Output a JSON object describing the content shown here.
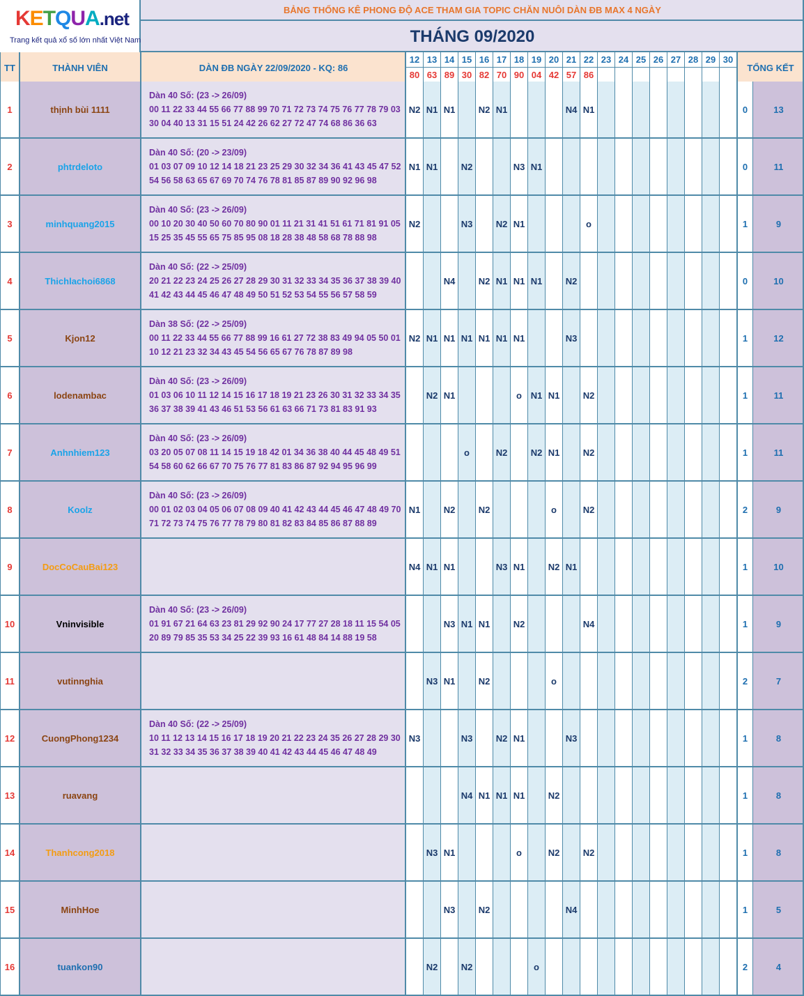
{
  "logo": {
    "brand": "KETQUA",
    "suffix": ".net",
    "tagline": "Trang kết quả xổ số lớn nhất Việt Nam"
  },
  "title": "BẢNG THỐNG KÊ PHONG ĐỘ ACE THAM GIA TOPIC CHĂN NUÔI DÀN ĐB MAX 4 NGÀY",
  "month": "THÁNG 09/2020",
  "headers": {
    "tt": "TT",
    "member": "THÀNH VIÊN",
    "dan": "DÀN ĐB NGÀY 22/09/2020 - KQ: 86",
    "summary": "TỔNG KẾT"
  },
  "days": [
    "12",
    "13",
    "14",
    "15",
    "16",
    "17",
    "18",
    "19",
    "20",
    "21",
    "22",
    "23",
    "24",
    "25",
    "26",
    "27",
    "28",
    "29",
    "30"
  ],
  "results": [
    "80",
    "63",
    "89",
    "30",
    "82",
    "70",
    "90",
    "04",
    "42",
    "57",
    "86",
    "",
    "",
    "",
    "",
    "",
    "",
    "",
    ""
  ],
  "colors": {
    "orange": "#e8762c",
    "navy": "#1b3a6b",
    "blue": "#1e6fb0",
    "red": "#e53935",
    "purple": "#7030a0"
  },
  "rows": [
    {
      "tt": "1",
      "name": "thịnh bùi 1111",
      "color": "#8b4513",
      "dan": [
        "Dàn 40 Số: (23 -> 26/09)",
        "00 11 22 33 44 55 66 77 88 99 70 71 72 73 74 75 76 77 78 79 03",
        "30 04 40 13 31 15 51 24 42 26 62 27 72 47 74 68 86 36 63"
      ],
      "cells": [
        "N2",
        "N1",
        "N1",
        "",
        "N2",
        "N1",
        "",
        "",
        "",
        "N4",
        "N1",
        "",
        "",
        "",
        "",
        "",
        "",
        "",
        ""
      ],
      "s1": "0",
      "s2": "13"
    },
    {
      "tt": "2",
      "name": "phtrdeloto",
      "color": "#1aa3e8",
      "dan": [
        "Dàn 40 Số: (20 -> 23/09)",
        "01 03 07 09 10 12 14 18 21 23 25 29 30 32 34 36 41 43 45 47 52",
        "54 56 58 63 65 67 69 70 74 76 78 81 85 87 89 90 92 96 98"
      ],
      "cells": [
        "N1",
        "N1",
        "",
        "N2",
        "",
        "",
        "N3",
        "N1",
        "",
        "",
        "",
        "",
        "",
        "",
        "",
        "",
        "",
        "",
        ""
      ],
      "s1": "0",
      "s2": "11"
    },
    {
      "tt": "3",
      "name": "minhquang2015",
      "color": "#1aa3e8",
      "dan": [
        "Dàn 40 Số: (23 -> 26/09)",
        "00 10 20 30 40 50 60 70 80 90 01 11 21 31 41 51 61 71 81 91 05",
        "15 25 35 45 55 65 75 85 95 08 18 28 38 48 58 68 78 88 98"
      ],
      "cells": [
        "N2",
        "",
        "",
        "N3",
        "",
        "N2",
        "N1",
        "",
        "",
        "",
        "o",
        "",
        "",
        "",
        "",
        "",
        "",
        "",
        ""
      ],
      "s1": "1",
      "s2": "9"
    },
    {
      "tt": "4",
      "name": "Thichlachoi6868",
      "color": "#1aa3e8",
      "dan": [
        "Dàn 40 Số: (22 -> 25/09)",
        "20 21 22 23 24 25 26 27 28 29 30 31 32 33 34 35 36 37 38 39 40",
        "41 42 43 44 45 46 47 48 49 50 51 52 53 54 55 56 57 58 59"
      ],
      "cells": [
        "",
        "",
        "N4",
        "",
        "N2",
        "N1",
        "N1",
        "N1",
        "",
        "N2",
        "",
        "",
        "",
        "",
        "",
        "",
        "",
        "",
        ""
      ],
      "s1": "0",
      "s2": "10"
    },
    {
      "tt": "5",
      "name": "Kjon12",
      "color": "#8b4513",
      "dan": [
        "Dàn 38 Số: (22 -> 25/09)",
        "00 11 22 33 44 55 66 77 88 99 16 61 27 72 38 83 49 94 05 50 01",
        "10 12 21 23 32 34 43 45 54 56 65 67 76 78 87 89 98"
      ],
      "cells": [
        "N2",
        "N1",
        "N1",
        "N1",
        "N1",
        "N1",
        "N1",
        "",
        "",
        "N3",
        "",
        "",
        "",
        "",
        "",
        "",
        "",
        "",
        ""
      ],
      "s1": "1",
      "s2": "12"
    },
    {
      "tt": "6",
      "name": "lodenambac",
      "color": "#8b4513",
      "dan": [
        "Dàn 40 Số: (23 -> 26/09)",
        "01 03 06 10 11 12 14 15 16 17 18 19 21 23 26 30 31 32 33 34 35",
        "36 37 38 39 41 43 46 51 53 56 61 63 66 71 73 81 83 91 93"
      ],
      "cells": [
        "",
        "N2",
        "N1",
        "",
        "",
        "",
        "o",
        "N1",
        "N1",
        "",
        "N2",
        "",
        "",
        "",
        "",
        "",
        "",
        "",
        ""
      ],
      "s1": "1",
      "s2": "11"
    },
    {
      "tt": "7",
      "name": "Anhnhiem123",
      "color": "#1aa3e8",
      "dan": [
        "Dàn 40 Số: (23 -> 26/09)",
        "03 20 05 07 08 11 14 15 19 18 42 01 34 36 38 40 44 45 48 49 51",
        "54 58 60 62 66 67 70 75 76 77 81 83 86 87 92 94 95 96 99"
      ],
      "cells": [
        "",
        "",
        "",
        "o",
        "",
        "N2",
        "",
        "N2",
        "N1",
        "",
        "N2",
        "",
        "",
        "",
        "",
        "",
        "",
        "",
        ""
      ],
      "s1": "1",
      "s2": "11"
    },
    {
      "tt": "8",
      "name": "Koolz",
      "color": "#1aa3e8",
      "dan": [
        "Dàn 40 Số: (23 -> 26/09)",
        "00 01 02 03 04 05 06 07 08 09 40 41 42 43 44 45 46 47 48 49 70",
        "71 72 73 74 75 76 77 78 79 80 81 82 83 84 85 86 87 88 89"
      ],
      "cells": [
        "N1",
        "",
        "N2",
        "",
        "N2",
        "",
        "",
        "",
        "o",
        "",
        "N2",
        "",
        "",
        "",
        "",
        "",
        "",
        "",
        ""
      ],
      "s1": "2",
      "s2": "9"
    },
    {
      "tt": "9",
      "name": "DocCoCauBai123",
      "color": "#f39c12",
      "dan": [],
      "cells": [
        "N4",
        "N1",
        "N1",
        "",
        "",
        "N3",
        "N1",
        "",
        "N2",
        "N1",
        "",
        "",
        "",
        "",
        "",
        "",
        "",
        "",
        ""
      ],
      "s1": "1",
      "s2": "10"
    },
    {
      "tt": "10",
      "name": "Vninvisible",
      "color": "#000000",
      "dan": [
        "Dàn 40 Số: (23 -> 26/09)",
        "01 91 67 21 64 63 23 81 29 92 90 24 17 77 27 28 18 11 15 54 05",
        "20 89 79 85 35 53 34 25 22 39 93 16 61 48 84 14 88 19 58"
      ],
      "cells": [
        "",
        "",
        "N3",
        "N1",
        "N1",
        "",
        "N2",
        "",
        "",
        "",
        "N4",
        "",
        "",
        "",
        "",
        "",
        "",
        "",
        ""
      ],
      "s1": "1",
      "s2": "9"
    },
    {
      "tt": "11",
      "name": "vutinnghia",
      "color": "#8b4513",
      "dan": [],
      "cells": [
        "",
        "N3",
        "N1",
        "",
        "N2",
        "",
        "",
        "",
        "o",
        "",
        "",
        "",
        "",
        "",
        "",
        "",
        "",
        "",
        ""
      ],
      "s1": "2",
      "s2": "7"
    },
    {
      "tt": "12",
      "name": "CuongPhong1234",
      "color": "#8b4513",
      "dan": [
        "Dàn 40 Số: (22 -> 25/09)",
        "10 11 12 13 14 15 16 17 18 19 20 21 22 23 24 35 26 27 28 29 30",
        "31 32 33 34 35 36 37 38 39 40 41 42 43 44 45 46 47 48 49"
      ],
      "cells": [
        "N3",
        "",
        "",
        "N3",
        "",
        "N2",
        "N1",
        "",
        "",
        "N3",
        "",
        "",
        "",
        "",
        "",
        "",
        "",
        "",
        ""
      ],
      "s1": "1",
      "s2": "8"
    },
    {
      "tt": "13",
      "name": "ruavang",
      "color": "#8b4513",
      "dan": [],
      "cells": [
        "",
        "",
        "",
        "N4",
        "N1",
        "N1",
        "N1",
        "",
        "N2",
        "",
        "",
        "",
        "",
        "",
        "",
        "",
        "",
        "",
        ""
      ],
      "s1": "1",
      "s2": "8"
    },
    {
      "tt": "14",
      "name": "Thanhcong2018",
      "color": "#f39c12",
      "dan": [],
      "cells": [
        "",
        "N3",
        "N1",
        "",
        "",
        "",
        "o",
        "",
        "N2",
        "",
        "N2",
        "",
        "",
        "",
        "",
        "",
        "",
        "",
        ""
      ],
      "s1": "1",
      "s2": "8"
    },
    {
      "tt": "15",
      "name": "MinhHoe",
      "color": "#8b4513",
      "dan": [],
      "cells": [
        "",
        "",
        "N3",
        "",
        "N2",
        "",
        "",
        "",
        "",
        "N4",
        "",
        "",
        "",
        "",
        "",
        "",
        "",
        "",
        ""
      ],
      "s1": "1",
      "s2": "5"
    },
    {
      "tt": "16",
      "name": "tuankon90",
      "color": "#1e6fb0",
      "dan": [],
      "cells": [
        "",
        "N2",
        "",
        "N2",
        "",
        "",
        "",
        "o",
        "",
        "",
        "",
        "",
        "",
        "",
        "",
        "",
        "",
        "",
        ""
      ],
      "s1": "2",
      "s2": "4"
    }
  ]
}
